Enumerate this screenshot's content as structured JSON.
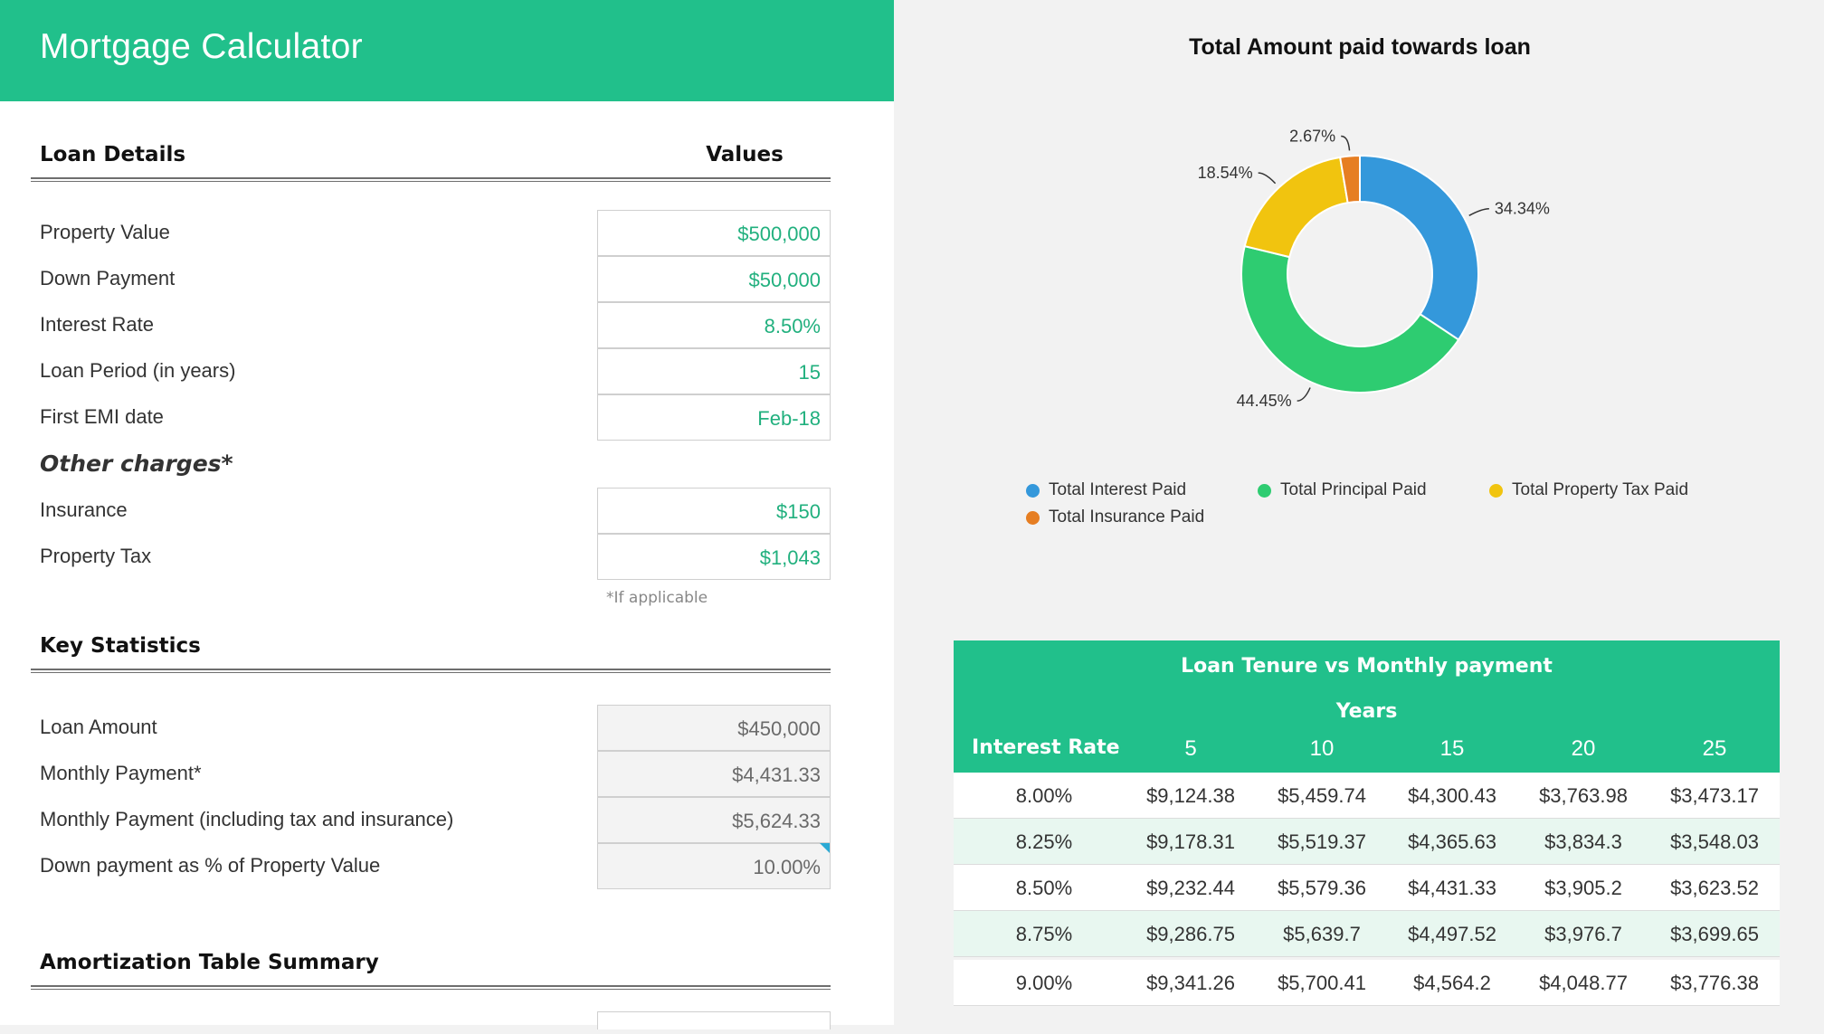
{
  "app_title": "Mortgage Calculator",
  "loan_details": {
    "heading": "Loan Details",
    "values_heading": "Values",
    "rows": [
      {
        "label": "Property Value",
        "value": "$500,000"
      },
      {
        "label": "Down Payment",
        "value": "$50,000"
      },
      {
        "label": "Interest Rate",
        "value": "8.50%"
      },
      {
        "label": "Loan Period (in years)",
        "value": "15"
      },
      {
        "label": "First EMI date",
        "value": "Feb-18"
      }
    ],
    "other_charges_heading": "Other charges*",
    "charges": [
      {
        "label": "Insurance",
        "value": "$150"
      },
      {
        "label": "Property Tax",
        "value": "$1,043"
      }
    ],
    "footnote": "*If applicable"
  },
  "key_statistics": {
    "heading": "Key Statistics",
    "rows": [
      {
        "label": "Loan Amount",
        "value": "$450,000"
      },
      {
        "label": "Monthly Payment*",
        "value": "$4,431.33"
      },
      {
        "label": "Monthly Payment (including tax and insurance)",
        "value": "$5,624.33"
      },
      {
        "label": "Down payment as % of Property Value",
        "value": "10.00%"
      }
    ]
  },
  "amortization": {
    "heading": "Amortization Table Summary"
  },
  "chart_data": {
    "type": "pie",
    "title": "Total Amount paid towards loan",
    "slices": [
      {
        "name": "Total Interest Paid",
        "value": 34.34,
        "label": "34.34%",
        "color": "#3498db"
      },
      {
        "name": "Total Principal Paid",
        "value": 44.45,
        "label": "44.45%",
        "color": "#2ecc71"
      },
      {
        "name": "Total Property Tax Paid",
        "value": 18.54,
        "label": "18.54%",
        "color": "#f1c40f"
      },
      {
        "name": "Total Insurance Paid",
        "value": 2.67,
        "label": "2.67%",
        "color": "#e67e22"
      }
    ],
    "donut": true,
    "legend_position": "bottom"
  },
  "tenure_table": {
    "title": "Loan Tenure vs Monthly payment",
    "years_label": "Years",
    "rate_label": "Interest Rate",
    "years": [
      "5",
      "10",
      "15",
      "20",
      "25"
    ],
    "rows": [
      {
        "rate": "8.00%",
        "values": [
          "$9,124.38",
          "$5,459.74",
          "$4,300.43",
          "$3,763.98",
          "$3,473.17"
        ]
      },
      {
        "rate": "8.25%",
        "values": [
          "$9,178.31",
          "$5,519.37",
          "$4,365.63",
          "$3,834.3",
          "$3,548.03"
        ]
      },
      {
        "rate": "8.50%",
        "values": [
          "$9,232.44",
          "$5,579.36",
          "$4,431.33",
          "$3,905.2",
          "$3,623.52"
        ]
      },
      {
        "rate": "8.75%",
        "values": [
          "$9,286.75",
          "$5,639.7",
          "$4,497.52",
          "$3,976.7",
          "$3,699.65"
        ]
      },
      {
        "rate": "9.00%",
        "values": [
          "$9,341.26",
          "$5,700.41",
          "$4,564.2",
          "$4,048.77",
          "$3,776.38"
        ]
      }
    ]
  },
  "colors": {
    "brand_green": "#21c08b",
    "value_green": "#21b07e",
    "row_alt": "#e8f7f0"
  }
}
